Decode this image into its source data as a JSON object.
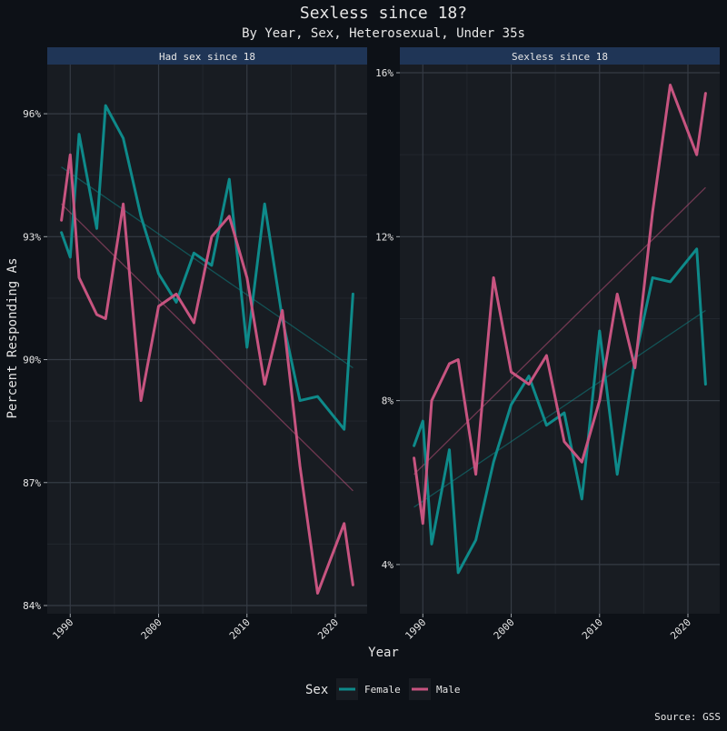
{
  "title": "Sexless since 18?",
  "subtitle": "By Year, Sex, Heterosexual, Under 35s",
  "xlabel": "Year",
  "ylabel": "Percent Responding As",
  "source": "Source: GSS",
  "legend": {
    "title": "Sex",
    "position": "bottom",
    "entries": [
      "Female",
      "Male"
    ]
  },
  "colors": {
    "Female": "#0e8a8a",
    "Male": "#c75480",
    "background": "#0d1117",
    "panel": "#181c22",
    "strip": "#1f3556"
  },
  "chart_data": [
    {
      "type": "line",
      "panel": "Had sex since 18",
      "x_ticks": [
        1990,
        2000,
        2010,
        2020
      ],
      "y_ticks": [
        84,
        87,
        90,
        93,
        96
      ],
      "y_tick_labels": [
        "84%",
        "87%",
        "90%",
        "93%",
        "96%"
      ],
      "xlim": [
        1987.4,
        2023.6
      ],
      "ylim": [
        83.8,
        97.2
      ],
      "series": [
        {
          "name": "Female",
          "x": [
            1989,
            1990,
            1991,
            1993,
            1994,
            1996,
            1998,
            2000,
            2002,
            2004,
            2006,
            2008,
            2010,
            2012,
            2014,
            2016,
            2018,
            2021,
            2022
          ],
          "y": [
            93.1,
            92.5,
            95.5,
            93.2,
            96.2,
            95.4,
            93.5,
            92.1,
            91.4,
            92.6,
            92.3,
            94.4,
            90.3,
            93.8,
            91.0,
            89.0,
            89.1,
            88.3,
            91.6
          ]
        },
        {
          "name": "Male",
          "x": [
            1989,
            1990,
            1991,
            1993,
            1994,
            1996,
            1998,
            2000,
            2002,
            2004,
            2006,
            2008,
            2010,
            2012,
            2014,
            2016,
            2018,
            2021,
            2022
          ],
          "y": [
            93.4,
            95.0,
            92.0,
            91.1,
            91.0,
            93.8,
            89.0,
            91.3,
            91.6,
            90.9,
            93.0,
            93.5,
            92.0,
            89.4,
            91.2,
            87.4,
            84.3,
            86.0,
            84.5
          ]
        }
      ],
      "trend": [
        {
          "name": "Female",
          "x": [
            1989,
            2022
          ],
          "y": [
            94.7,
            89.8
          ]
        },
        {
          "name": "Male",
          "x": [
            1989,
            2022
          ],
          "y": [
            93.8,
            86.8
          ]
        }
      ]
    },
    {
      "type": "line",
      "panel": "Sexless since 18",
      "x_ticks": [
        1990,
        2000,
        2010,
        2020
      ],
      "y_ticks": [
        4,
        8,
        12,
        16
      ],
      "y_tick_labels": [
        "4%",
        "8%",
        "12%",
        "16%"
      ],
      "xlim": [
        1987.4,
        2023.6
      ],
      "ylim": [
        2.8,
        16.2
      ],
      "series": [
        {
          "name": "Female",
          "x": [
            1989,
            1990,
            1991,
            1993,
            1994,
            1996,
            1998,
            2000,
            2002,
            2004,
            2006,
            2008,
            2010,
            2012,
            2014,
            2016,
            2018,
            2021,
            2022
          ],
          "y": [
            6.9,
            7.5,
            4.5,
            6.8,
            3.8,
            4.6,
            6.5,
            7.9,
            8.6,
            7.4,
            7.7,
            5.6,
            9.7,
            6.2,
            9.0,
            11.0,
            10.9,
            11.7,
            8.4
          ]
        },
        {
          "name": "Male",
          "x": [
            1989,
            1990,
            1991,
            1993,
            1994,
            1996,
            1998,
            2000,
            2002,
            2004,
            2006,
            2008,
            2010,
            2012,
            2014,
            2016,
            2018,
            2021,
            2022
          ],
          "y": [
            6.6,
            5.0,
            8.0,
            8.9,
            9.0,
            6.2,
            11.0,
            8.7,
            8.4,
            9.1,
            7.0,
            6.5,
            8.0,
            10.6,
            8.8,
            12.6,
            15.7,
            14.0,
            15.5
          ]
        }
      ],
      "trend": [
        {
          "name": "Female",
          "x": [
            1989,
            2022
          ],
          "y": [
            5.4,
            10.2
          ]
        },
        {
          "name": "Male",
          "x": [
            1989,
            2022
          ],
          "y": [
            6.2,
            13.2
          ]
        }
      ]
    }
  ]
}
